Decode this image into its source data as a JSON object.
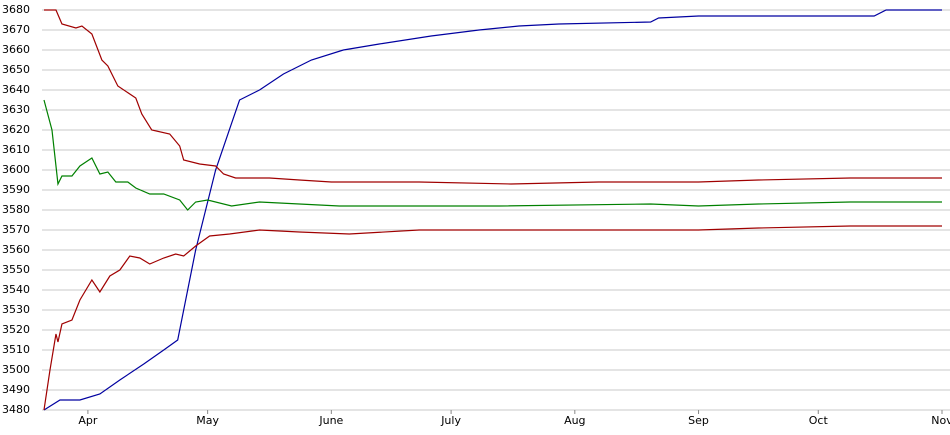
{
  "chart_data": {
    "type": "line",
    "xlim": [
      79.5,
      305
    ],
    "xticks": [
      {
        "value": 91,
        "label": "Apr"
      },
      {
        "value": 121,
        "label": "May"
      },
      {
        "value": 152,
        "label": "June"
      },
      {
        "value": 182,
        "label": "July"
      },
      {
        "value": 213,
        "label": "Aug"
      },
      {
        "value": 244,
        "label": "Sep"
      },
      {
        "value": 274,
        "label": "Oct"
      },
      {
        "value": 305,
        "label": "Nov"
      }
    ],
    "ylim": [
      3480,
      3680
    ],
    "yticks": [
      3480,
      3490,
      3500,
      3510,
      3520,
      3530,
      3540,
      3550,
      3560,
      3570,
      3580,
      3590,
      3600,
      3610,
      3620,
      3630,
      3640,
      3650,
      3660,
      3670,
      3680
    ],
    "grid": true,
    "series": [
      {
        "color": "#0000a0",
        "x": [
          80,
          84,
          89,
          94,
          99,
          105,
          110,
          113.5,
          118,
          123,
          129,
          134,
          140,
          147,
          155,
          164,
          177,
          189,
          199,
          209,
          232,
          234,
          244,
          288,
          291,
          305
        ],
        "values": [
          3480,
          3485,
          3485,
          3488,
          3495,
          3503,
          3510,
          3515,
          3560,
          3600,
          3635,
          3640,
          3648,
          3655,
          3660,
          3663,
          3667,
          3670,
          3672,
          3673,
          3674,
          3676,
          3677,
          3677,
          3680,
          3680
        ]
      },
      {
        "color": "#008000",
        "x": [
          80,
          82,
          83.5,
          84.5,
          87,
          89,
          92,
          94,
          96,
          98,
          101,
          103,
          106.5,
          110,
          114,
          116,
          118,
          121,
          127,
          134,
          144,
          154,
          194,
          232,
          244,
          259,
          282,
          305
        ],
        "values": [
          3635,
          3620,
          3593,
          3597,
          3597,
          3602,
          3606,
          3598,
          3599,
          3594,
          3594,
          3591,
          3588,
          3588,
          3585,
          3580,
          3584,
          3585,
          3582,
          3584,
          3583,
          3582,
          3582,
          3583,
          3582,
          3583,
          3584,
          3584
        ]
      },
      {
        "color": "#a00000",
        "x": [
          80,
          83,
          84.5,
          88,
          89.5,
          92,
          94.5,
          96,
          98.5,
          103,
          104.5,
          107,
          111.5,
          114,
          115,
          119,
          123,
          125,
          128,
          136.5,
          144,
          152,
          174,
          197,
          219,
          244,
          259,
          282,
          305
        ],
        "values": [
          3680,
          3680,
          3673,
          3671,
          3672,
          3668,
          3655,
          3652,
          3642,
          3636,
          3628,
          3620,
          3618,
          3612,
          3605,
          3603,
          3602,
          3598,
          3596,
          3596,
          3595,
          3594,
          3594,
          3593,
          3594,
          3594,
          3595,
          3596,
          3596
        ]
      },
      {
        "color": "#a00000",
        "x": [
          80,
          81.5,
          83,
          83.5,
          84.5,
          87,
          89,
          92,
          94,
          96.5,
          99,
          101.5,
          104,
          106.5,
          110,
          113,
          115,
          118,
          121.5,
          126.5,
          134,
          144,
          156.5,
          174,
          219,
          244,
          259,
          282,
          305
        ],
        "values": [
          3480,
          3500,
          3518,
          3514,
          3523,
          3525,
          3535,
          3545,
          3539,
          3547,
          3550,
          3557,
          3556,
          3553,
          3556,
          3558,
          3557,
          3562,
          3567,
          3568,
          3570,
          3569,
          3568,
          3570,
          3570,
          3570,
          3571,
          3572,
          3572
        ]
      }
    ]
  }
}
